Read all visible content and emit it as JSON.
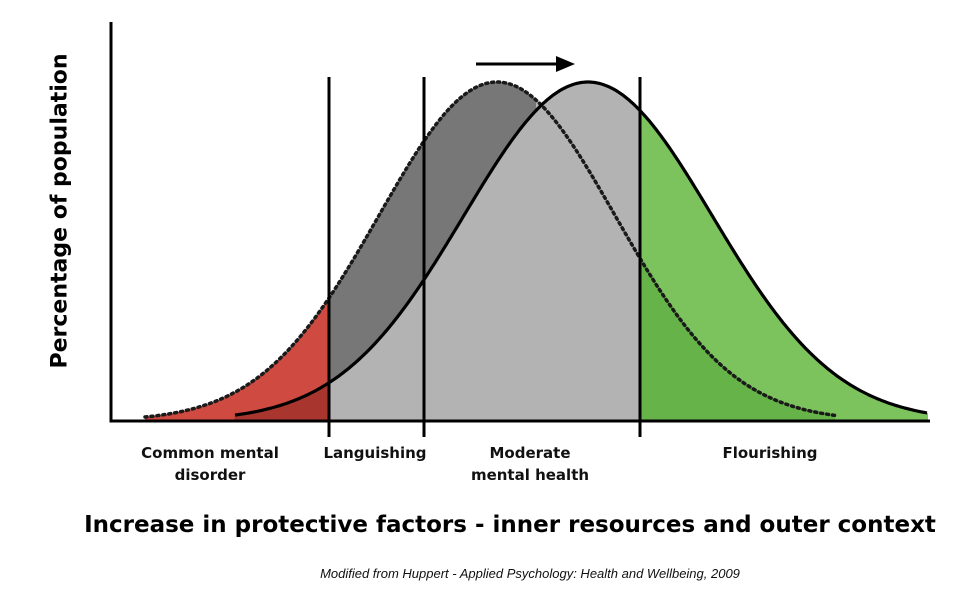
{
  "diagram": {
    "y_axis_label": "Percentage of population",
    "x_axis_label": "Increase in protective factors - inner resources and outer context",
    "source": "Modified from Huppert - Applied Psychology: Health and Wellbeing, 2009",
    "categories": [
      {
        "line1": "Common mental",
        "line2": "disorder"
      },
      {
        "line1": "Languishing",
        "line2": ""
      },
      {
        "line1": "Moderate",
        "line2": "mental health"
      },
      {
        "line1": "Flourishing",
        "line2": ""
      }
    ],
    "curves": [
      {
        "style": "dotted",
        "role": "original distribution"
      },
      {
        "style": "solid",
        "role": "shifted distribution"
      }
    ],
    "shift_arrow": "right",
    "colors": {
      "disorder": "#cf4a41",
      "disorder_overlap": "#a8362f",
      "languishing_overlap": "#777777",
      "moderate": "#b3b3b3",
      "flourishing": "#7cc35e",
      "flourishing_overlap": "#65b349",
      "lines": "#000000"
    }
  }
}
